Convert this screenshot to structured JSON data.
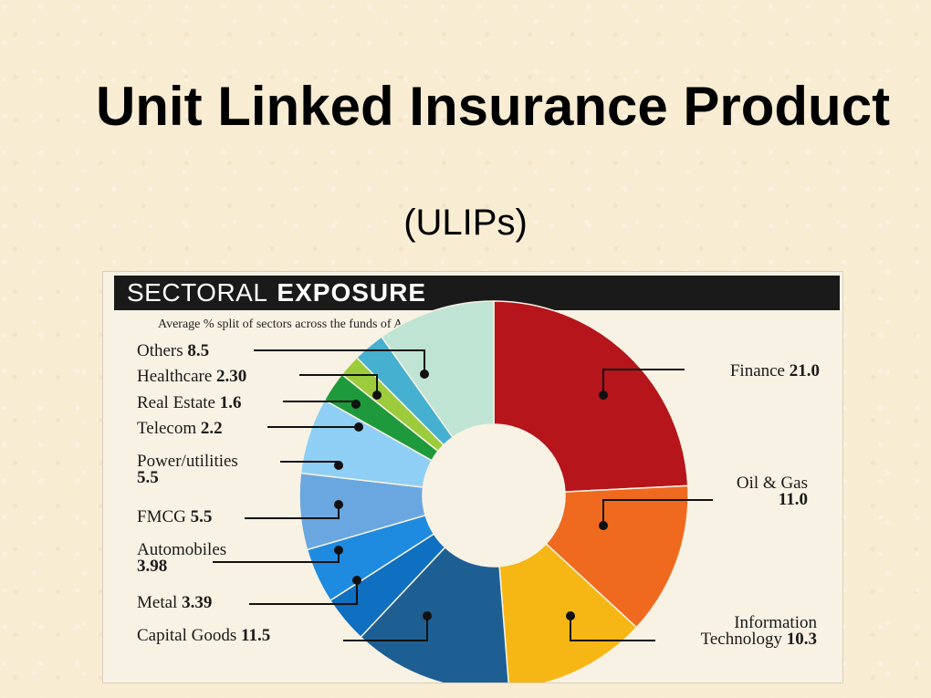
{
  "slide": {
    "title": "Unit Linked Insurance Product",
    "subtitle": "(ULIPs)"
  },
  "chart_header": {
    "part1": "SECTORAL",
    "part2": "EXPOSURE"
  },
  "chart_data": {
    "type": "pie",
    "title": "SECTORAL EXPOSURE",
    "subtitle": "Average % split of sectors across the funds of Aegon Religare Life Insurance Ltd",
    "slices": [
      {
        "label": "Finance",
        "value": 21.0,
        "value_text": "21.0",
        "color": "#b5151b"
      },
      {
        "label": "Oil & Gas",
        "value": 11.0,
        "value_text": "11.0",
        "color": "#ef6a1f"
      },
      {
        "label": "Information Technology",
        "value": 10.3,
        "value_text": "10.3",
        "color": "#f6b614"
      },
      {
        "label": "Capital Goods",
        "value": 11.5,
        "value_text": "11.5",
        "color": "#1e5f93"
      },
      {
        "label": "Metal",
        "value": 3.39,
        "value_text": "3.39",
        "color": "#0f6fc0"
      },
      {
        "label": "Automobiles",
        "value": 3.98,
        "value_text": "3.98",
        "color": "#1e8be0"
      },
      {
        "label": "FMCG",
        "value": 5.5,
        "value_text": "5.5",
        "color": "#6aa7e0"
      },
      {
        "label": "Power/utilities",
        "value": 5.5,
        "value_text": "5.5",
        "color": "#8fcff5"
      },
      {
        "label": "Telecom",
        "value": 2.2,
        "value_text": "2.2",
        "color": "#1e9a3c"
      },
      {
        "label": "Real Estate",
        "value": 1.6,
        "value_text": "1.6",
        "color": "#9ccc3c"
      },
      {
        "label": "Healthcare",
        "value": 2.3,
        "value_text": "2.30",
        "color": "#45b0d0"
      },
      {
        "label": "Others",
        "value": 8.5,
        "value_text": "8.5",
        "color": "#bfe4d4"
      }
    ]
  },
  "colors": {
    "background": "#f8ecd3",
    "header_bar": "#1a1a1a"
  }
}
